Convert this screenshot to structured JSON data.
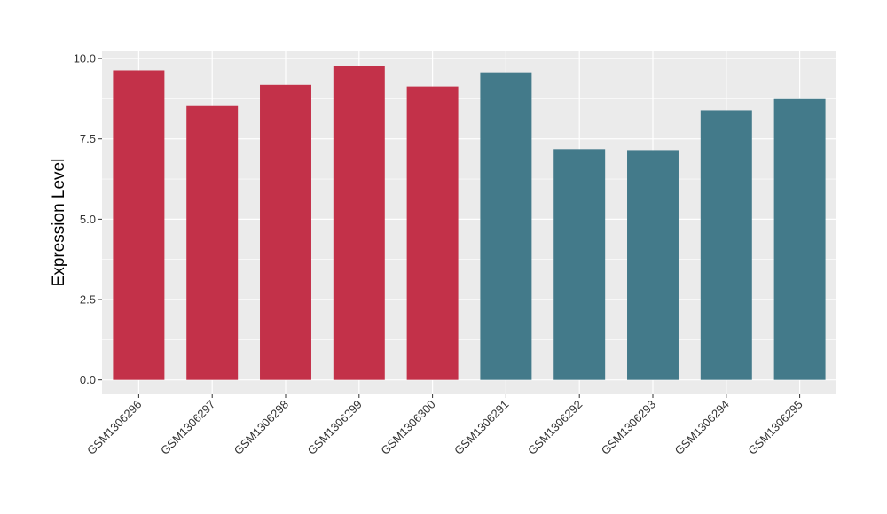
{
  "chart_data": {
    "type": "bar",
    "title": "",
    "xlabel": "",
    "ylabel": "Expression Level",
    "ylim": [
      -0.45,
      10.25
    ],
    "yticks": [
      "0.0",
      "2.5",
      "5.0",
      "7.5",
      "10.0"
    ],
    "ytick_values": [
      0,
      2.5,
      5,
      7.5,
      10
    ],
    "grid": true,
    "legend": "none",
    "categories": [
      "GSM1306296",
      "GSM1306297",
      "GSM1306298",
      "GSM1306299",
      "GSM1306300",
      "GSM1306291",
      "GSM1306292",
      "GSM1306293",
      "GSM1306294",
      "GSM1306295"
    ],
    "values": [
      9.63,
      8.52,
      9.18,
      9.76,
      9.13,
      9.57,
      7.18,
      7.15,
      8.39,
      8.74
    ],
    "groups": [
      "a",
      "a",
      "a",
      "a",
      "a",
      "b",
      "b",
      "b",
      "b",
      "b"
    ],
    "group_colors": {
      "a": "#c33149",
      "b": "#437a8a"
    },
    "panel_color": "#ebebeb",
    "grid_color": "#ffffff"
  }
}
